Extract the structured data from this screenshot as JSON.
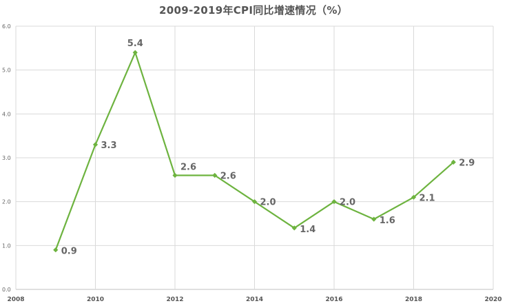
{
  "chart_data": {
    "type": "line",
    "title": "2009-2019年CPI同比增速情况（%）",
    "xlabel": "",
    "ylabel": "",
    "xlim": [
      2008,
      2020
    ],
    "ylim": [
      0,
      6
    ],
    "x_ticks": [
      "2008",
      "2010",
      "2012",
      "2014",
      "2016",
      "2018",
      "2020"
    ],
    "y_ticks": [
      "0.0",
      "1.0",
      "2.0",
      "3.0",
      "4.0",
      "5.0",
      "6.0"
    ],
    "x": [
      2009,
      2010,
      2011,
      2012,
      2013,
      2014,
      2015,
      2016,
      2017,
      2018,
      2019
    ],
    "values": [
      0.9,
      3.3,
      5.4,
      2.6,
      2.6,
      2.0,
      1.4,
      2.0,
      1.6,
      2.1,
      2.9
    ],
    "data_labels": [
      "0.9",
      "3.3",
      "5.4",
      "2.6",
      "2.6",
      "2.0",
      "1.4",
      "2.0",
      "1.6",
      "2.1",
      "2.9"
    ],
    "grid": true,
    "line_color": "#6db33f",
    "marker": "diamond"
  }
}
